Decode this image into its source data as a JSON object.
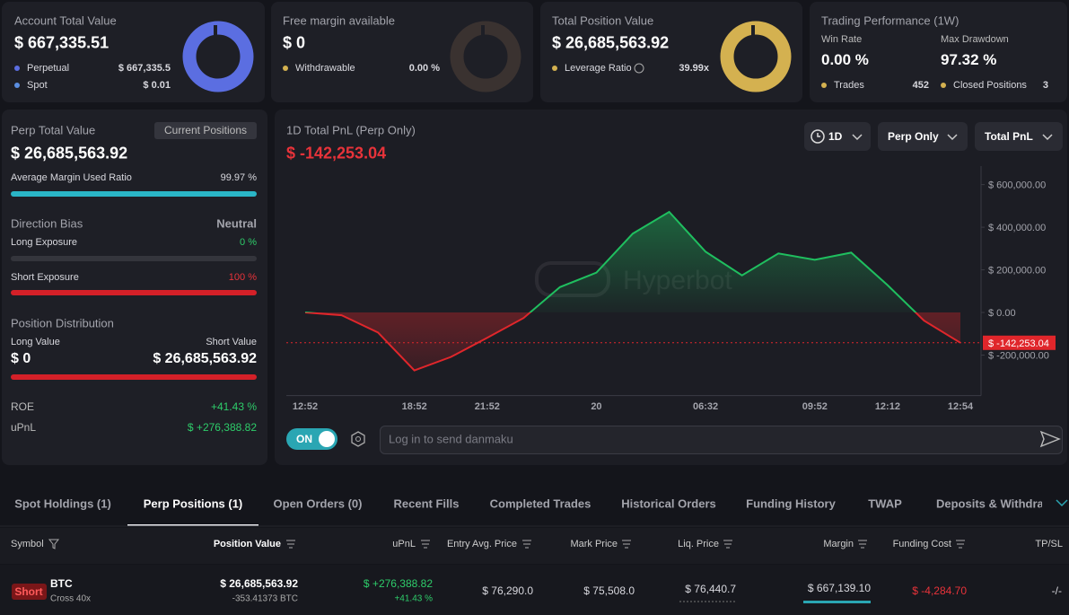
{
  "summary": {
    "account": {
      "title": "Account Total Value",
      "value": "$ 667,335.51",
      "perpetual_label": "Perpetual",
      "perpetual": "$ 667,335.5",
      "spot_label": "Spot",
      "spot": "$ 0.01"
    },
    "free_margin": {
      "title": "Free margin available",
      "value": "$ 0",
      "withdrawable_label": "Withdrawable",
      "withdrawable": "0.00 %"
    },
    "position": {
      "title": "Total Position Value",
      "value": "$ 26,685,563.92",
      "leverage_label": "Leverage Ratio",
      "leverage": "39.99x"
    },
    "performance": {
      "title": "Trading Performance (1W)",
      "win_rate_label": "Win Rate",
      "win_rate": "0.00 %",
      "max_drawdown_label": "Max Drawdown",
      "max_drawdown": "97.32 %",
      "trades_label": "Trades",
      "trades": "452",
      "closed_label": "Closed Positions",
      "closed": "3"
    }
  },
  "perp": {
    "title": "Perp Total Value",
    "button": "Current Positions",
    "value": "$ 26,685,563.92",
    "margin_ratio_label": "Average Margin Used Ratio",
    "margin_ratio": "99.97 %",
    "bias_label": "Direction Bias",
    "bias": "Neutral",
    "long_exposure_label": "Long Exposure",
    "long_exposure": "0 %",
    "short_exposure_label": "Short Exposure",
    "short_exposure": "100 %",
    "distribution_label": "Position Distribution",
    "long_value_label": "Long Value",
    "short_value_label": "Short Value",
    "long_value": "$ 0",
    "short_value": "$ 26,685,563.92",
    "roe_label": "ROE",
    "roe": "+41.43 %",
    "upnl_label": "uPnL",
    "upnl": "$ +276,388.82"
  },
  "chart_data": {
    "type": "line",
    "title": "1D Total PnL (Perp Only)",
    "headline": "$ -142,253.04",
    "watermark": "Hyperbot",
    "categories": [
      "12:52",
      null,
      null,
      "18:52",
      null,
      "21:52",
      null,
      null,
      "20",
      null,
      null,
      "06:32",
      null,
      null,
      "09:52",
      null,
      "12:12",
      null,
      "12:54"
    ],
    "values": [
      0,
      -13000,
      -94000,
      -272000,
      -209000,
      -119000,
      -26000,
      119000,
      187000,
      370000,
      472000,
      285000,
      174000,
      277000,
      247000,
      281000,
      128000,
      -38000,
      -142253.04
    ],
    "last_label": "$ -142,253.04",
    "color_up": "#1fbf5f",
    "color_down": "#e0262b",
    "ylim": [
      -390000,
      670000
    ],
    "yticks": [
      {
        "value": -200000,
        "label": "$ -200,000.00"
      },
      {
        "value": 0,
        "label": "$ 0.00"
      },
      {
        "value": 200000,
        "label": "$ 200,000.00"
      },
      {
        "value": 400000,
        "label": "$ 400,000.00"
      },
      {
        "value": 600000,
        "label": "$ 600,000.00"
      }
    ]
  },
  "controls": {
    "range": "1D",
    "scope": "Perp Only",
    "metric": "Total PnL",
    "toggle": "ON",
    "danmaku_placeholder": "Log in to send danmaku"
  },
  "tabs": {
    "items": [
      "Spot Holdings (1)",
      "Perp Positions (1)",
      "Open Orders (0)",
      "Recent Fills",
      "Completed Trades",
      "Historical Orders",
      "Funding History",
      "TWAP",
      "Deposits & Withdraw"
    ],
    "active": 1
  },
  "table": {
    "columns": [
      "Symbol",
      "Position Value",
      "uPnL",
      "Entry Avg. Price",
      "Mark Price",
      "Liq. Price",
      "Margin",
      "Funding Cost",
      "TP/SL"
    ],
    "rows": [
      {
        "side": "Short",
        "symbol": "BTC",
        "margin_mode": "Cross 40x",
        "position_value": "$ 26,685,563.92",
        "size": "-353.41373 BTC",
        "upnl": "$ +276,388.82",
        "upnl_pct": "+41.43 %",
        "entry": "$ 76,290.0",
        "mark": "$ 75,508.0",
        "liq": "$ 76,440.7",
        "margin": "$ 667,139.10",
        "funding": "$ -4,284.70",
        "tpsl": "-/-"
      }
    ]
  }
}
